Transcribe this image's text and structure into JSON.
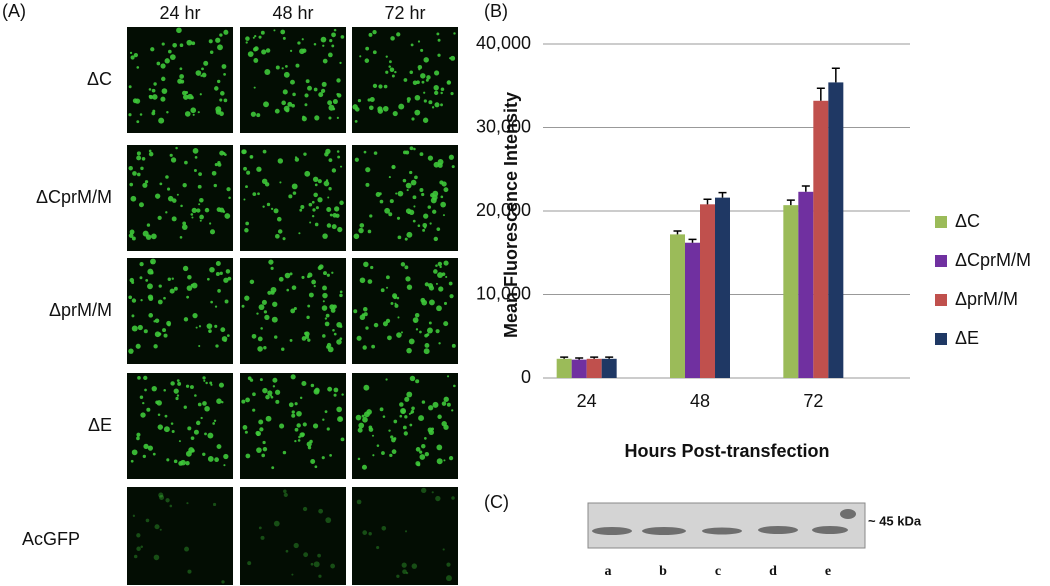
{
  "panel_a": {
    "label": "(A)",
    "columns": [
      "24 hr",
      "48 hr",
      "72 hr"
    ],
    "rows": [
      "ΔC",
      "ΔCprM/M",
      "ΔprM/M",
      "ΔE",
      "AcGFP"
    ]
  },
  "panel_b_label": "(B)",
  "panel_c": {
    "label": "(C)",
    "marker": "~ 45 kDa",
    "lanes": [
      "a",
      "b",
      "c",
      "d",
      "e"
    ]
  },
  "chart_data": {
    "type": "bar",
    "y_label": "Mean Fluorescence Intensity",
    "x_label": "Hours Post-transfection",
    "categories": [
      "24",
      "48",
      "72"
    ],
    "series": [
      {
        "name": "ΔC",
        "color": "#9bbb59",
        "values": [
          2300,
          17200,
          20700
        ],
        "errors": [
          200,
          400,
          600
        ]
      },
      {
        "name": "ΔCprM/M",
        "color": "#7030a0",
        "values": [
          2200,
          16200,
          22300
        ],
        "errors": [
          200,
          400,
          700
        ]
      },
      {
        "name": "ΔprM/M",
        "color": "#c0504d",
        "values": [
          2300,
          20800,
          33200
        ],
        "errors": [
          200,
          600,
          1500
        ]
      },
      {
        "name": "ΔE",
        "color": "#1f3864",
        "values": [
          2300,
          21600,
          35400
        ],
        "errors": [
          200,
          600,
          1700
        ]
      }
    ],
    "ylim": [
      0,
      40000
    ],
    "yticks": [
      0,
      {
        "value": 10000,
        "label": "10,000"
      },
      {
        "value": 20000,
        "label": "20,000"
      },
      {
        "value": 30000,
        "label": "30,000"
      },
      {
        "value": 40000,
        "label": "40,000"
      }
    ],
    "grid": true,
    "legend": "right"
  }
}
